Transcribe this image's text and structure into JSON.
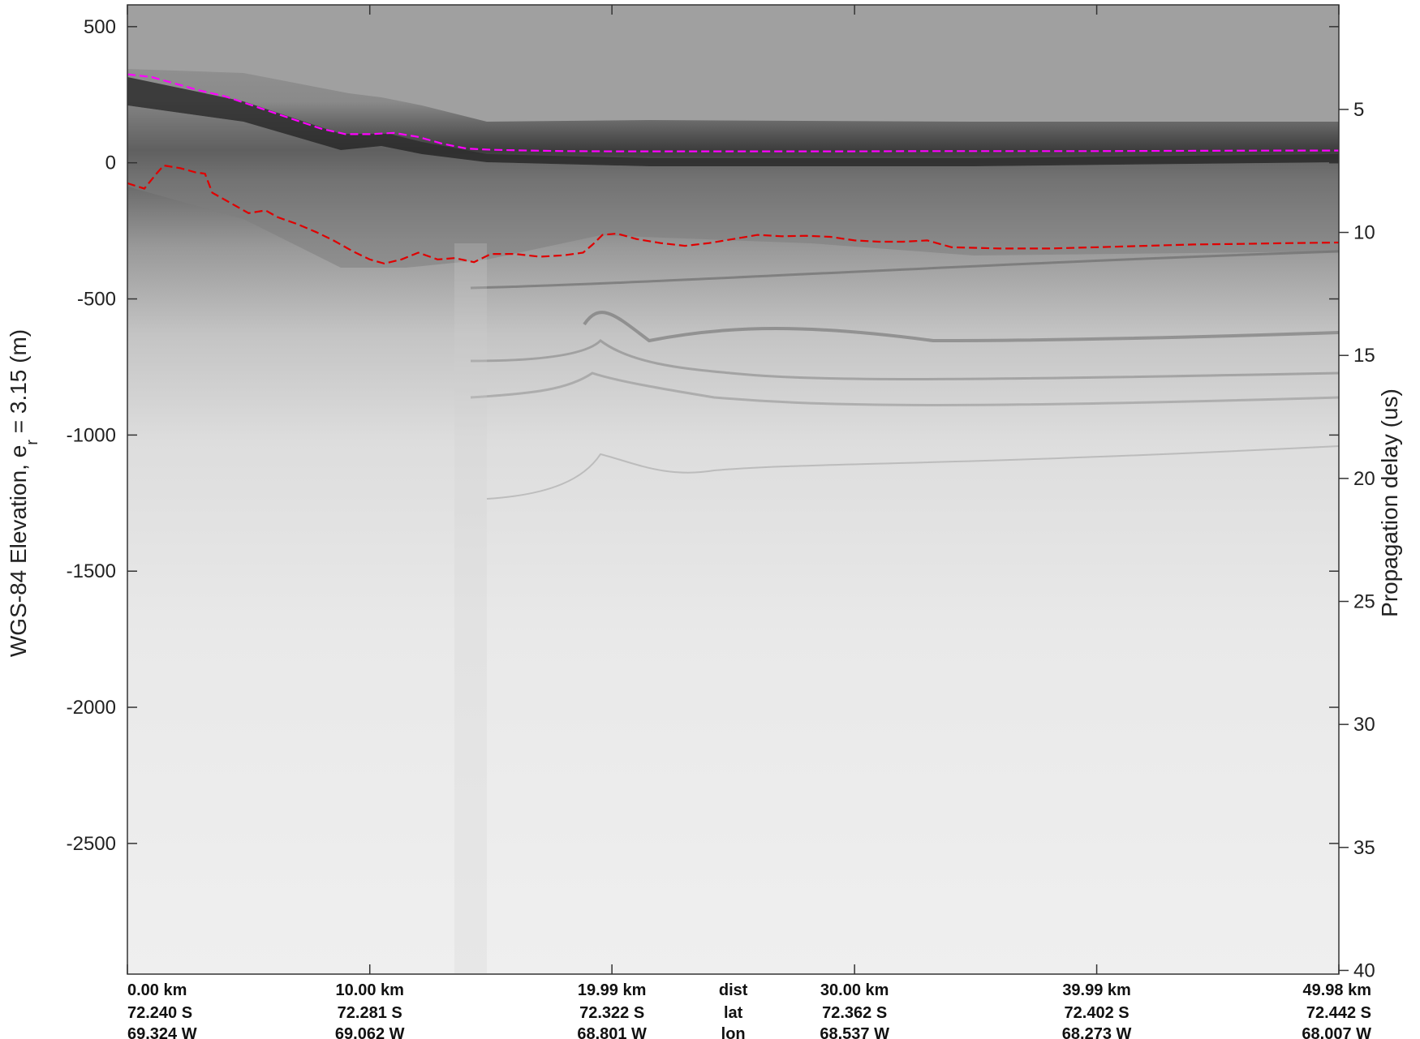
{
  "chart_data": {
    "type": "radargram",
    "title": "",
    "left_axis": {
      "label_main": "WGS-84 Elevation, e",
      "label_sub": "r",
      "label_tail": " = 3.15 (m)",
      "ticks": [
        500,
        0,
        -500,
        -1000,
        -1500,
        -2000,
        -2500
      ],
      "tick_labels": [
        "500",
        "0",
        "-500",
        "-1000",
        "-1500",
        "-2000",
        "-2500"
      ],
      "range": [
        -2980,
        580
      ]
    },
    "right_axis": {
      "label": "Propagation delay (us)",
      "ticks": [
        5,
        10,
        15,
        20,
        25,
        30,
        35,
        40
      ],
      "tick_labels": [
        "5",
        "10",
        "15",
        "20",
        "25",
        "30",
        "35",
        "40"
      ],
      "range": [
        0.75,
        40.15
      ]
    },
    "x_axis": {
      "range": [
        0,
        49.98
      ],
      "ticks": [
        0,
        10,
        19.99,
        30,
        39.99,
        49.98
      ],
      "dist_labels": [
        "0.00 km",
        "10.00 km",
        "19.99 km",
        "30.00 km",
        "39.99 km",
        "49.98 km"
      ],
      "lat_labels": [
        "72.240 S",
        "72.281 S",
        "72.322 S",
        "72.362 S",
        "72.402 S",
        "72.442 S"
      ],
      "lon_labels": [
        "69.324 W",
        "69.062 W",
        "68.801 W",
        "68.537 W",
        "68.273 W",
        "68.007 W"
      ],
      "row_names": [
        "dist",
        "lat",
        "lon"
      ]
    },
    "series": [
      {
        "color": "#ff00ff",
        "style": "dashed",
        "x": [
          0,
          1,
          2,
          3,
          4,
          5,
          6,
          7,
          8,
          9,
          10,
          11,
          12,
          13,
          14,
          15,
          16,
          18,
          20,
          22,
          25,
          28,
          30,
          33,
          36,
          40,
          44,
          48,
          49.98
        ],
        "y": [
          325,
          315,
          290,
          265,
          245,
          215,
          185,
          155,
          125,
          105,
          105,
          110,
          95,
          70,
          52,
          48,
          46,
          43,
          42,
          42,
          42,
          42,
          42,
          43,
          43,
          43,
          44,
          45,
          45
        ]
      },
      {
        "color": "#e00000",
        "style": "dashed",
        "x": [
          0,
          0.7,
          1.2,
          1.5,
          2.2,
          2.8,
          3.2,
          3.5,
          4.3,
          5,
          5.7,
          6.2,
          7,
          7.8,
          8.5,
          9.3,
          10,
          10.6,
          11.3,
          12,
          12.8,
          13.5,
          14.3,
          15,
          16,
          17,
          18,
          18.8,
          19.2,
          19.6,
          20.2,
          21,
          22,
          23,
          24,
          25,
          26,
          27,
          28,
          29,
          30,
          31,
          32,
          33,
          34,
          36,
          38,
          40,
          42,
          44,
          46,
          48,
          49.98
        ],
        "y": [
          -75,
          -95,
          -40,
          -10,
          -20,
          -35,
          -40,
          -110,
          -150,
          -185,
          -175,
          -200,
          -225,
          -255,
          -285,
          -325,
          -355,
          -370,
          -355,
          -330,
          -355,
          -350,
          -365,
          -335,
          -335,
          -345,
          -340,
          -330,
          -300,
          -265,
          -260,
          -280,
          -295,
          -305,
          -295,
          -280,
          -265,
          -270,
          -268,
          -272,
          -285,
          -290,
          -290,
          -285,
          -310,
          -315,
          -315,
          -310,
          -305,
          -300,
          -298,
          -295,
          -293
        ]
      }
    ]
  }
}
